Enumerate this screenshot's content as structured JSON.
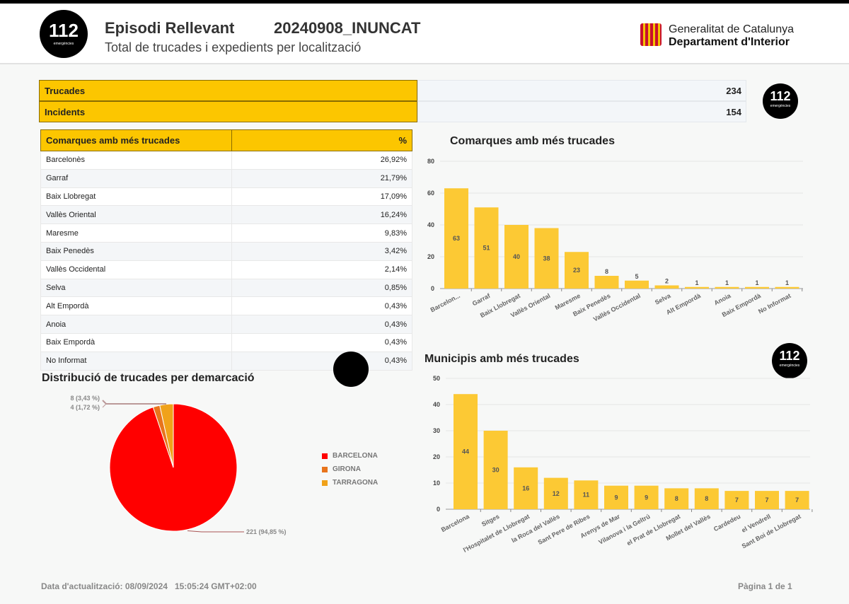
{
  "header": {
    "logo_number": "112",
    "logo_sub": "emergències",
    "title": "Episodi Rellevant",
    "code": "20240908_INUNCAT",
    "subtitle": "Total de trucades i expedients per localització",
    "org_line1": "Generalitat de Catalunya",
    "org_line2": "Departament d'Interior"
  },
  "summary": [
    {
      "label": "Trucades",
      "value": "234"
    },
    {
      "label": "Incidents",
      "value": "154"
    }
  ],
  "comarques_table": {
    "header": "Comarques amb més trucades",
    "pct_header": "%",
    "rows": [
      {
        "name": "Barcelonès",
        "pct": "26,92%"
      },
      {
        "name": "Garraf",
        "pct": "21,79%"
      },
      {
        "name": "Baix Llobregat",
        "pct": "17,09%"
      },
      {
        "name": "Vallès Oriental",
        "pct": "16,24%"
      },
      {
        "name": "Maresme",
        "pct": "9,83%"
      },
      {
        "name": "Baix Penedès",
        "pct": "3,42%"
      },
      {
        "name": "Vallès Occidental",
        "pct": "2,14%"
      },
      {
        "name": "Selva",
        "pct": "0,85%"
      },
      {
        "name": "Alt Empordà",
        "pct": "0,43%"
      },
      {
        "name": "Anoia",
        "pct": "0,43%"
      },
      {
        "name": "Baix Empordà",
        "pct": "0,43%"
      },
      {
        "name": "No Informat",
        "pct": "0,43%"
      }
    ]
  },
  "chart_data": [
    {
      "type": "bar",
      "title": "Comarques amb més trucades",
      "categories": [
        "Barcelon...",
        "Garraf",
        "Baix Llobregat",
        "Vallès Oriental",
        "Maresme",
        "Baix Penedès",
        "Vallès Occidental",
        "Selva",
        "Alt Empordà",
        "Anoia",
        "Baix Empordà",
        "No Informat"
      ],
      "values": [
        63,
        51,
        40,
        38,
        23,
        8,
        5,
        2,
        1,
        1,
        1,
        1
      ],
      "ylim": [
        0,
        80
      ],
      "yticks": [
        0,
        20,
        40,
        60,
        80
      ],
      "color": "#fcc934"
    },
    {
      "type": "bar",
      "title": "Municipis amb més trucades",
      "categories": [
        "Barcelona",
        "Sitges",
        "l'Hospitalet de Llobregat",
        "la Roca del Vallès",
        "Sant Pere de Ribes",
        "Arenys de Mar",
        "Vilanova i la Geltrú",
        "el Prat de Llobregat",
        "Mollet del Vallès",
        "Cardedeu",
        "el Vendrell",
        "Sant Boi de Llobregat"
      ],
      "values": [
        44,
        30,
        16,
        12,
        11,
        9,
        9,
        8,
        8,
        7,
        7,
        7
      ],
      "ylim": [
        0,
        50
      ],
      "yticks": [
        0,
        10,
        20,
        30,
        40,
        50
      ],
      "color": "#fcc934"
    },
    {
      "type": "pie",
      "title": "Distribució de trucades per demarcació",
      "slices": [
        {
          "name": "BARCELONA",
          "value": 221,
          "label": "221 (94,85 %)",
          "color": "#ff0000"
        },
        {
          "name": "GIRONA",
          "value": 4,
          "label": "4 (1,72 %)",
          "color": "#e8741c"
        },
        {
          "name": "TARRAGONA",
          "value": 8,
          "label": "8 (3,43 %)",
          "color": "#f0a21a"
        }
      ]
    }
  ],
  "footer": {
    "updated": "Data d'actualització: 08/09/2024   15:05:24 GMT+02:00",
    "page": "Pàgina 1 de 1"
  }
}
